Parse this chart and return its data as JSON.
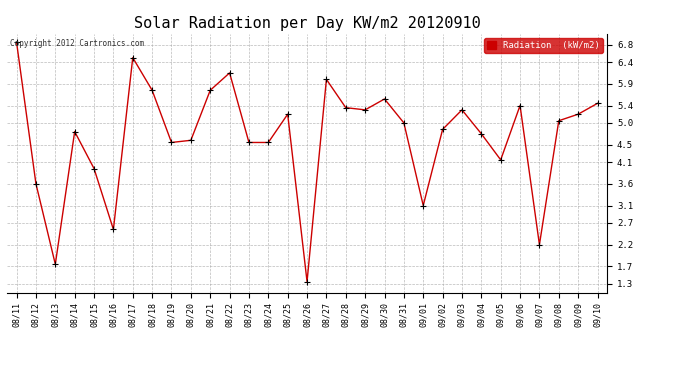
{
  "title": "Solar Radiation per Day KW/m2 20120910",
  "copyright_text": "Copyright 2012 Cartronics.com",
  "legend_label": "Radiation  (kW/m2)",
  "dates": [
    "08/11",
    "08/12",
    "08/13",
    "08/14",
    "08/15",
    "08/16",
    "08/17",
    "08/18",
    "08/19",
    "08/20",
    "08/21",
    "08/22",
    "08/23",
    "08/24",
    "08/25",
    "08/26",
    "08/27",
    "08/28",
    "08/29",
    "08/30",
    "08/31",
    "09/01",
    "09/02",
    "09/03",
    "09/04",
    "09/05",
    "09/06",
    "09/07",
    "09/08",
    "09/09",
    "09/10"
  ],
  "values": [
    6.85,
    3.6,
    1.75,
    4.8,
    3.95,
    2.55,
    6.5,
    5.75,
    4.55,
    4.6,
    5.75,
    6.15,
    4.55,
    4.55,
    5.2,
    1.35,
    6.0,
    5.35,
    5.3,
    5.55,
    5.0,
    3.1,
    4.85,
    5.3,
    4.75,
    4.15,
    5.4,
    2.2,
    5.05,
    5.2,
    5.45
  ],
  "yticks": [
    1.3,
    1.7,
    2.2,
    2.7,
    3.1,
    3.6,
    4.1,
    4.5,
    5.0,
    5.4,
    5.9,
    6.4,
    6.8
  ],
  "ylim": [
    1.1,
    7.05
  ],
  "line_color": "#cc0000",
  "marker_color": "#000000",
  "bg_color": "#ffffff",
  "grid_color": "#aaaaaa",
  "title_fontsize": 11,
  "legend_bg": "#cc0000",
  "legend_text_color": "#ffffff"
}
